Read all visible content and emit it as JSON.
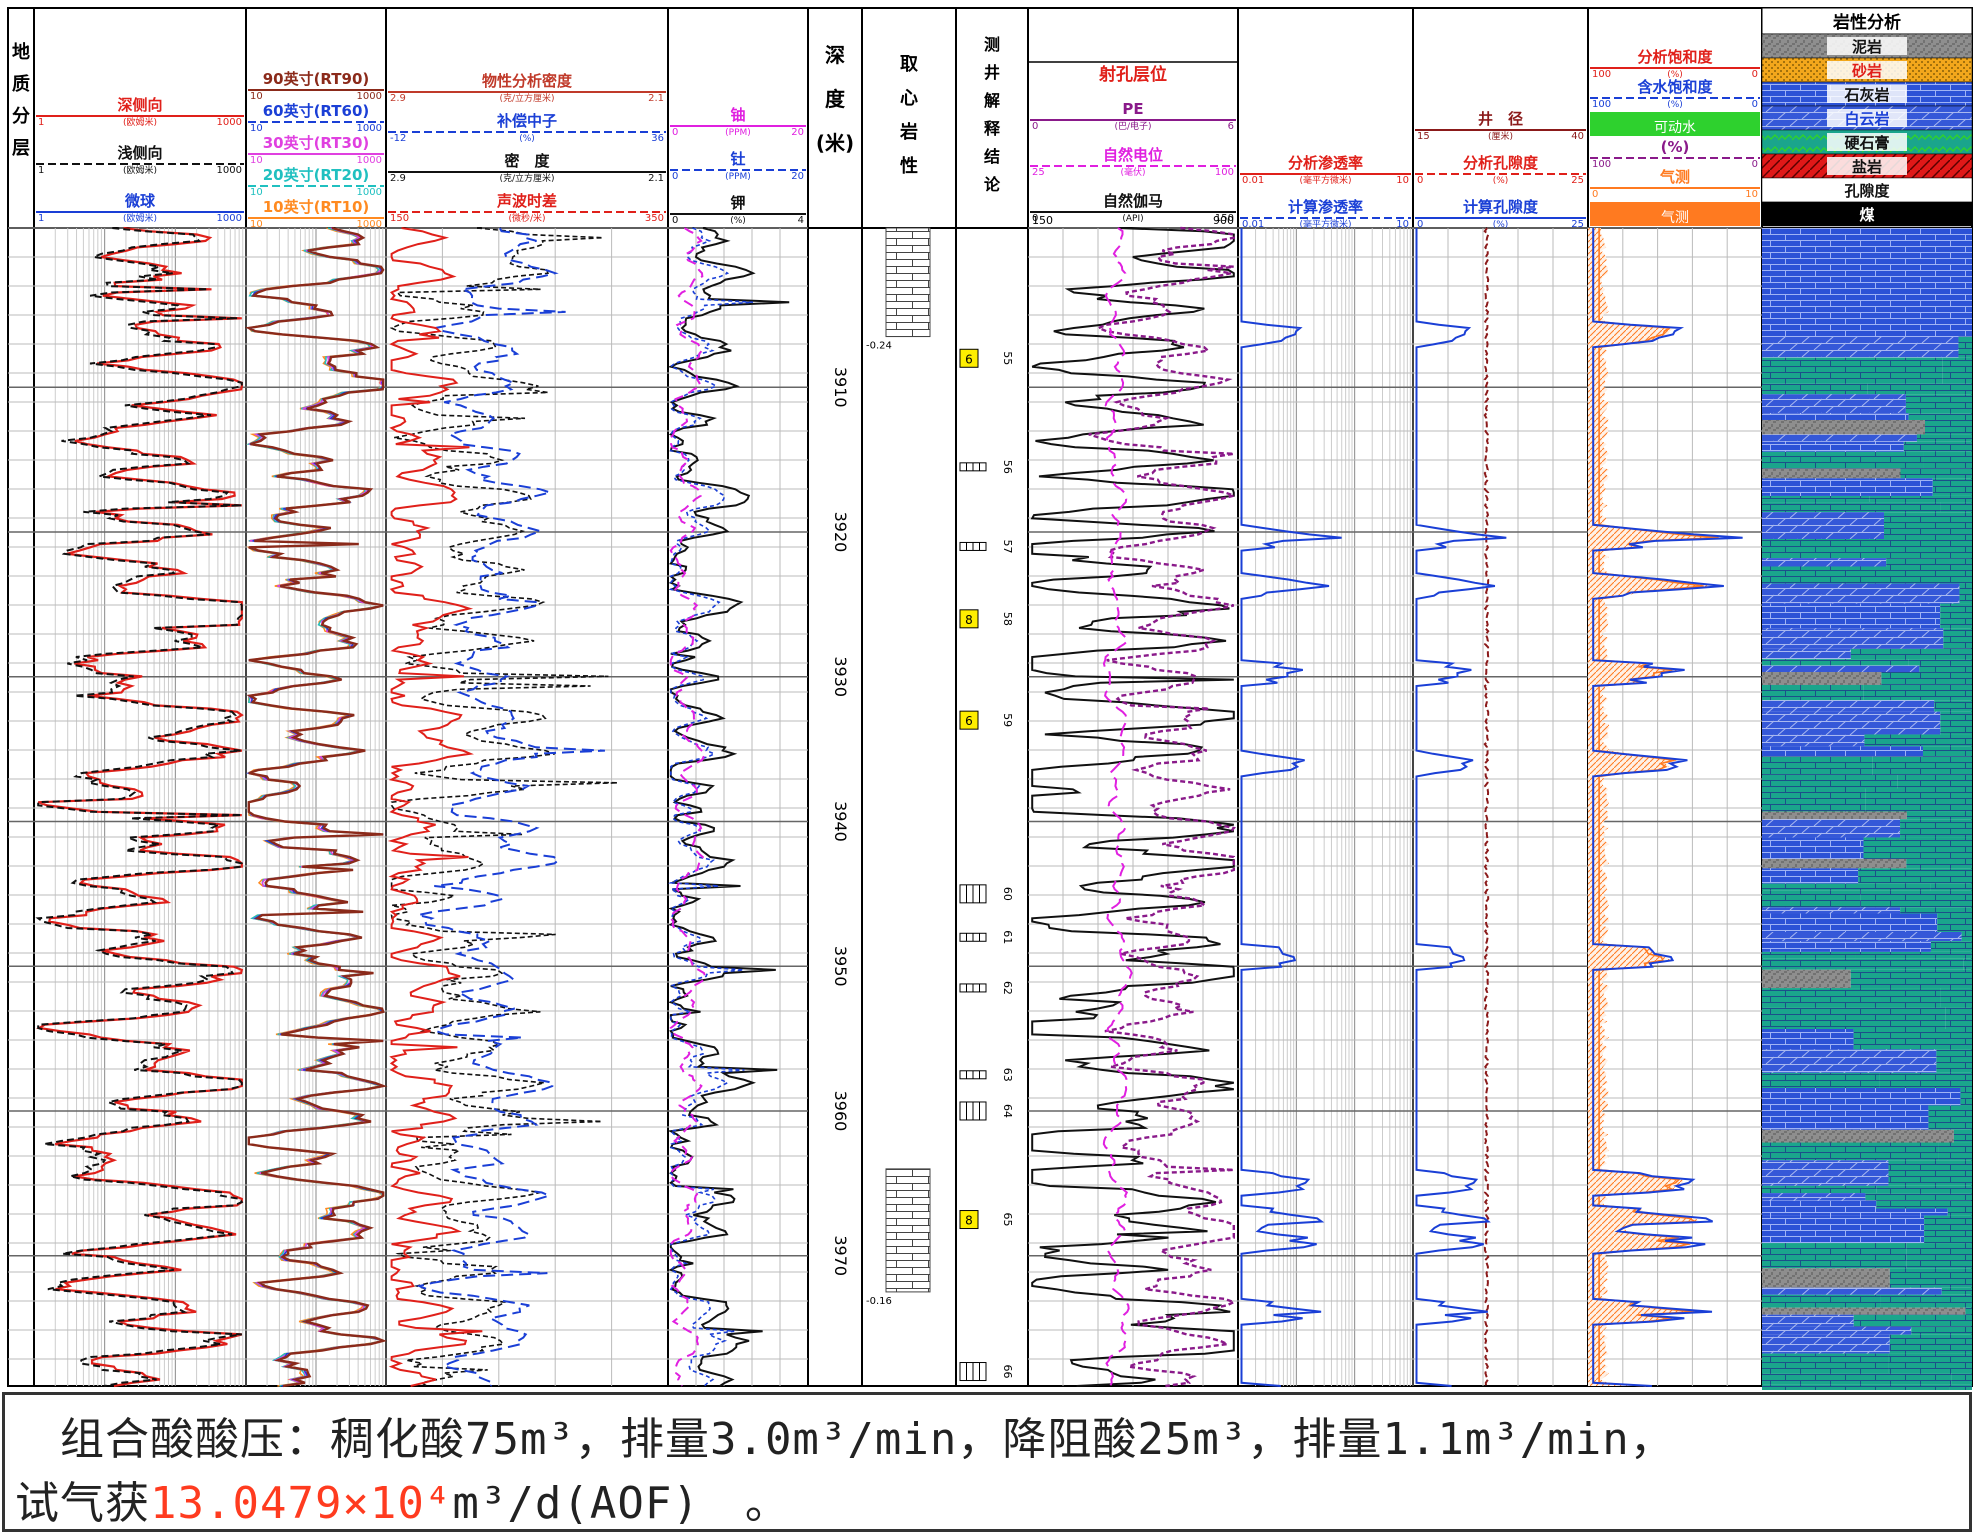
{
  "chart_data": {
    "type": "well-log",
    "depth_ticks": [
      3910,
      3920,
      3930,
      3940,
      3950,
      3960,
      3970
    ],
    "depth_range": [
      3899,
      3979
    ],
    "tracks": {
      "geology": {
        "title": [
          "地",
          "质",
          "分",
          "层"
        ]
      },
      "resistivity": {
        "curves": [
          {
            "name": "深侧向",
            "unit": "(欧姆米)",
            "min": "1",
            "max": "1000",
            "color": "#e0201a"
          },
          {
            "name": "浅侧向",
            "unit": "(欧姆米)",
            "min": "1",
            "max": "1000",
            "color": "#111111"
          },
          {
            "name": "微球",
            "unit": "(欧姆米)",
            "min": "1",
            "max": "1000",
            "color": "#1a3fd6"
          }
        ]
      },
      "array_induction": {
        "curves": [
          {
            "name": "90英寸(RT90)",
            "min": "10",
            "max": "1000",
            "color": "#8b2a1a"
          },
          {
            "name": "60英寸(RT60)",
            "min": "10",
            "max": "1000",
            "color": "#1a3fd6"
          },
          {
            "name": "30英寸(RT30)",
            "min": "10",
            "max": "1000",
            "color": "#e040e0"
          },
          {
            "name": "20英寸(RT20)",
            "min": "10",
            "max": "1000",
            "color": "#20c0c0"
          },
          {
            "name": "10英寸(RT10)",
            "min": "10",
            "max": "1000",
            "color": "#ff8a20"
          }
        ]
      },
      "porosity": {
        "curves": [
          {
            "name": "物性分析密度",
            "unit": "(克/立方厘米)",
            "min": "2.9",
            "max": "2.1",
            "color": "#c03a2a"
          },
          {
            "name": "补偿中子",
            "unit": "(%)",
            "min": "-12",
            "max": "36",
            "color": "#1a3fd6"
          },
          {
            "name": "密　度",
            "unit": "(克/立方厘米)",
            "min": "2.9",
            "max": "2.1",
            "color": "#111111"
          },
          {
            "name": "声波时差",
            "unit": "(微秒/米)",
            "min": "150",
            "max": "350",
            "color": "#e0201a"
          }
        ]
      },
      "spectral": {
        "curves": [
          {
            "name": "铀",
            "unit": "(PPM)",
            "min": "0",
            "max": "20",
            "color": "#e020e0"
          },
          {
            "name": "钍",
            "unit": "(PPM)",
            "min": "0",
            "max": "20",
            "color": "#1a3fd6"
          },
          {
            "name": "钾",
            "unit": "(%)",
            "min": "0",
            "max": "4",
            "color": "#111111"
          }
        ]
      },
      "depth": {
        "title": [
          "深",
          "度",
          "(米)"
        ]
      },
      "core": {
        "title": [
          "取",
          "心",
          "岩",
          "性"
        ],
        "intervals": [
          {
            "label": "-0.24"
          },
          {
            "label": "-0.16"
          }
        ]
      },
      "interpretation": {
        "title": [
          "测",
          "井",
          "解",
          "释",
          "结",
          "论"
        ],
        "layers": [
          {
            "num": "55",
            "kind": "gas",
            "code": "6"
          },
          {
            "num": "56",
            "kind": "dry"
          },
          {
            "num": "57",
            "kind": "dry"
          },
          {
            "num": "58",
            "kind": "gas",
            "code": "8"
          },
          {
            "num": "59",
            "kind": "gas",
            "code": "6"
          },
          {
            "num": "60",
            "kind": "tight"
          },
          {
            "num": "61",
            "kind": "dry"
          },
          {
            "num": "62",
            "kind": "dry"
          },
          {
            "num": "63",
            "kind": "dry"
          },
          {
            "num": "64",
            "kind": "tight"
          },
          {
            "num": "65",
            "kind": "gas",
            "code": "8"
          },
          {
            "num": "66",
            "kind": "tight"
          }
        ]
      },
      "lithology_curves": {
        "header_title": "射孔层位",
        "curves": [
          {
            "name": "PE",
            "unit": "(巴/电子)",
            "min": "0",
            "max": "6",
            "color": "#8a1a8a"
          },
          {
            "name": "自然电位",
            "unit": "(毫伏)",
            "min": "25",
            "max": "100",
            "color": "#e020e0"
          },
          {
            "name": "自然伽马",
            "unit": "(API)",
            "min": "0",
            "max": "150",
            "color": "#111111"
          }
        ],
        "scale_labels": [
          "150",
          "900"
        ]
      },
      "permeability": {
        "curves": [
          {
            "name": "分析渗透率",
            "unit": "(毫平方微米)",
            "min": "0.01",
            "max": "10",
            "color": "#e0201a"
          },
          {
            "name": "计算渗透率",
            "unit": "(毫平方微米)",
            "min": "0.01",
            "max": "10",
            "color": "#1a3fd6"
          }
        ]
      },
      "caliper": {
        "curves": [
          {
            "name": "井　径",
            "unit": "(厘米)",
            "min": "15",
            "max": "40",
            "color": "#8b1a1a"
          },
          {
            "name": "分析孔隙度",
            "unit": "(%)",
            "min": "0",
            "max": "25",
            "color": "#e0201a"
          },
          {
            "name": "计算孔隙度",
            "unit": "(%)",
            "min": "0",
            "max": "25",
            "color": "#1a3fd6"
          }
        ]
      },
      "saturation": {
        "curves": [
          {
            "name": "分析饱和度",
            "unit": "(%)",
            "min": "100",
            "max": "0",
            "color": "#e0201a"
          },
          {
            "name": "含水饱和度",
            "unit": "(%)",
            "min": "100",
            "max": "0",
            "color": "#1a3fd6"
          },
          {
            "name": "可动水",
            "fill": "#2ed12e"
          },
          {
            "name": "(%)",
            "unit": "",
            "min": "100",
            "max": "0",
            "color": "#8a1a8a"
          },
          {
            "name": "气测",
            "unit": "",
            "min": "0",
            "max": "10",
            "color": "#ff7a20"
          },
          {
            "name": "气测",
            "fill": "#ff7a20"
          }
        ]
      },
      "lithology_analysis": {
        "title": "岩性分析",
        "legend": [
          {
            "name": "泥岩",
            "color": "#8a8a8a",
            "text_color": "#111111"
          },
          {
            "name": "砂岩",
            "color": "#f2a71c",
            "text_color": "#e0201a"
          },
          {
            "name": "石灰岩",
            "color": "#2a4fd4",
            "text_color": "#111111"
          },
          {
            "name": "白云岩",
            "color": "#2a4fd4",
            "text_color": "#1a3fd6"
          },
          {
            "name": "硬石膏",
            "color": "#18a88a",
            "text_color": "#111111"
          },
          {
            "name": "盐岩",
            "color": "#e01818",
            "text_color": "#111111"
          },
          {
            "name": "孔隙度",
            "color": "#ffffff",
            "text_color": "#111111"
          },
          {
            "name": "煤",
            "color": "#000000",
            "text_color": "#ffffff"
          }
        ]
      }
    }
  },
  "caption": {
    "line1": "　组合酸酸压：稠化酸75m³，排量3.0m³/min，降阻酸25m³，排量1.1m³/min，",
    "line2_prefix": "试气获",
    "line2_value": "13.0479×10⁴",
    "line2_suffix": "m³/d(AOF)　。"
  }
}
